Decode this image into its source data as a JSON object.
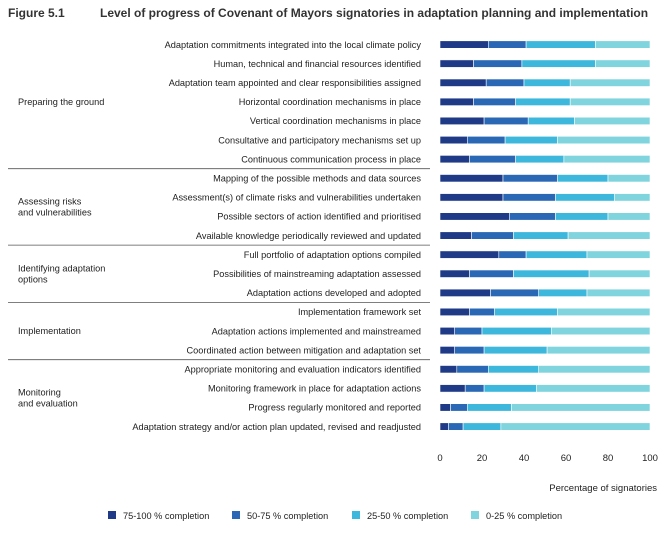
{
  "figure": {
    "number": "Figure 5.1",
    "title": "Level of progress of Covenant of Mayors signatories in adaptation planning and implementation"
  },
  "colors": {
    "s75_100": "#1f3a86",
    "s50_75": "#2a68b6",
    "s25_50": "#3db8dc",
    "s0_25": "#7fd4dd",
    "divider": "#555555",
    "separator": "#ffffff"
  },
  "chart_data": {
    "type": "bar",
    "orientation": "horizontal",
    "stacked": true,
    "xlabel": "Percentage of signatories",
    "xlim": [
      0,
      100
    ],
    "xticks": [
      0,
      20,
      40,
      60,
      80,
      100
    ],
    "legend_position": "bottom",
    "series": [
      {
        "name": "75-100 % completion",
        "color_key": "s75_100"
      },
      {
        "name": "50-75 % completion",
        "color_key": "s50_75"
      },
      {
        "name": "25-50 % completion",
        "color_key": "s25_50"
      },
      {
        "name": "0-25 % completion",
        "color_key": "s0_25"
      }
    ],
    "groups": [
      {
        "name": "Preparing the ground",
        "items": [
          {
            "label": "Adaptation commitments integrated into the local climate policy",
            "values": [
              23,
              18,
              33,
              26
            ]
          },
          {
            "label": "Human, technical and financial resources identified",
            "values": [
              16,
              23,
              35,
              26
            ]
          },
          {
            "label": "Adaptation team appointed and clear responsibilities assigned",
            "values": [
              22,
              18,
              22,
              38
            ]
          },
          {
            "label": "Horizontal coordination mechanisms in place",
            "values": [
              16,
              20,
              26,
              38
            ]
          },
          {
            "label": "Vertical coordination mechanisms in place",
            "values": [
              21,
              21,
              22,
              36
            ]
          },
          {
            "label": "Consultative and participatory mechanisms set up",
            "values": [
              13,
              18,
              25,
              44
            ]
          },
          {
            "label": "Continuous communication process in place",
            "values": [
              14,
              22,
              23,
              41
            ]
          }
        ]
      },
      {
        "name": "Assessing risks and vulnerabilities",
        "items": [
          {
            "label": "Mapping of the possible methods and data sources",
            "values": [
              30,
              26,
              24,
              20
            ]
          },
          {
            "label": "Assessment(s) of climate risks and vulnerabilities undertaken",
            "values": [
              30,
              25,
              28,
              17
            ]
          },
          {
            "label": "Possible sectors of action identified and prioritised",
            "values": [
              33,
              22,
              25,
              20
            ]
          },
          {
            "label": "Available knowledge periodically reviewed and updated",
            "values": [
              15,
              20,
              26,
              39
            ]
          }
        ]
      },
      {
        "name": "Identifying adaptation options",
        "items": [
          {
            "label": "Full portfolio of adaptation options compiled",
            "values": [
              28,
              13,
              29,
              30
            ]
          },
          {
            "label": "Possibilities of mainstreaming adaptation assessed",
            "values": [
              14,
              21,
              36,
              29
            ]
          },
          {
            "label": "Adaptation actions developed and adopted",
            "values": [
              24,
              23,
              23,
              30
            ]
          }
        ]
      },
      {
        "name": "Implementation",
        "items": [
          {
            "label": "Implementation framework set",
            "values": [
              14,
              12,
              30,
              44
            ]
          },
          {
            "label": "Adaptation actions implemented and mainstreamed",
            "values": [
              7,
              13,
              33,
              47
            ]
          },
          {
            "label": "Coordinated action between mitigation and adaptation set",
            "values": [
              7,
              14,
              30,
              49
            ]
          }
        ]
      },
      {
        "name": "Monitoring and evaluation",
        "items": [
          {
            "label": "Appropriate monitoring and evaluation indicators identified",
            "values": [
              8,
              15,
              24,
              53
            ]
          },
          {
            "label": "Monitoring framework in place for adaptation actions",
            "values": [
              12,
              9,
              25,
              54
            ]
          },
          {
            "label": "Progress regularly monitored and reported",
            "values": [
              5,
              8,
              21,
              66
            ]
          },
          {
            "label": "Adaptation strategy and/or action plan updated, revised and readjusted",
            "values": [
              4,
              7,
              18,
              71
            ]
          }
        ]
      }
    ]
  }
}
